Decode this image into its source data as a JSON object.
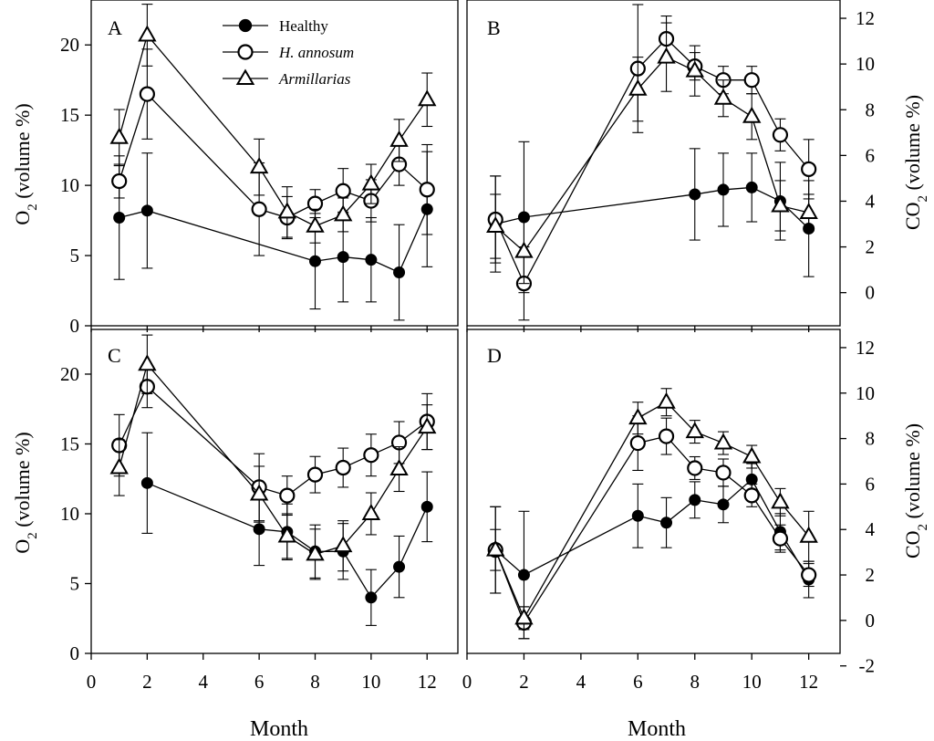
{
  "chart_data": [
    {
      "type": "line",
      "panel": "A",
      "y_axis": "O2",
      "ylim": [
        0,
        23.2
      ],
      "xlim": [
        0,
        13.1
      ],
      "yticks": [
        0,
        5,
        10,
        15,
        20
      ],
      "series": [
        {
          "name": "Healthy",
          "marker": "filled-circle",
          "x": [
            1,
            2,
            8,
            9,
            10,
            11,
            12
          ],
          "values": [
            7.7,
            8.2,
            4.6,
            4.9,
            4.7,
            3.8,
            8.3
          ],
          "err": [
            4.4,
            4.1,
            3.4,
            3.2,
            3.0,
            3.4,
            4.1
          ]
        },
        {
          "name": "H. annosum",
          "marker": "open-circle",
          "x": [
            1,
            2,
            6,
            7,
            8,
            9,
            10,
            11,
            12
          ],
          "values": [
            10.3,
            16.5,
            8.3,
            7.7,
            8.7,
            9.6,
            8.9,
            11.5,
            9.7
          ],
          "err": [
            1.2,
            3.2,
            3.3,
            1.5,
            1.0,
            1.6,
            1.5,
            1.5,
            3.2
          ]
        },
        {
          "name": "Armillarias",
          "marker": "open-triangle",
          "x": [
            1,
            2,
            6,
            7,
            8,
            9,
            10,
            11,
            12
          ],
          "values": [
            13.4,
            20.7,
            11.3,
            8.1,
            7.1,
            7.9,
            10.1,
            13.2,
            16.1
          ],
          "err": [
            2.0,
            2.2,
            2.0,
            1.8,
            1.2,
            1.2,
            1.4,
            1.5,
            1.9
          ]
        }
      ]
    },
    {
      "type": "line",
      "panel": "B",
      "y_axis": "CO2",
      "ylim": [
        -1.45,
        12.8
      ],
      "xlim": [
        0,
        13.1
      ],
      "yticks": [
        0,
        2,
        4,
        6,
        8,
        10,
        12
      ],
      "series": [
        {
          "name": "Healthy",
          "marker": "filled-circle",
          "x": [
            1,
            2,
            8,
            9,
            10,
            11,
            12
          ],
          "values": [
            3.0,
            3.3,
            4.3,
            4.5,
            4.6,
            4.0,
            2.8
          ],
          "err": [
            2.1,
            3.3,
            2.0,
            1.6,
            1.5,
            1.7,
            2.1
          ]
        },
        {
          "name": "H. annosum",
          "marker": "open-circle",
          "x": [
            1,
            2,
            6,
            7,
            8,
            9,
            10,
            11,
            12
          ],
          "values": [
            3.2,
            0.4,
            9.8,
            11.1,
            9.9,
            9.3,
            9.3,
            6.9,
            5.4
          ],
          "err": [
            1.9,
            1.6,
            2.8,
            1.0,
            0.6,
            0.6,
            0.6,
            0.7,
            1.3
          ]
        },
        {
          "name": "Armillarias",
          "marker": "open-triangle",
          "x": [
            1,
            2,
            6,
            7,
            8,
            9,
            10,
            11,
            12
          ],
          "values": [
            2.9,
            1.8,
            8.9,
            10.3,
            9.7,
            8.5,
            7.7,
            3.8,
            3.5
          ],
          "err": [
            1.4,
            1.4,
            1.4,
            1.5,
            1.1,
            0.8,
            1.0,
            1.1,
            0.8
          ]
        }
      ]
    },
    {
      "type": "line",
      "panel": "C",
      "y_axis": "O2",
      "ylim": [
        0,
        23.2
      ],
      "xlim": [
        0,
        13.1
      ],
      "yticks": [
        0,
        5,
        10,
        15,
        20
      ],
      "series": [
        {
          "name": "Healthy",
          "marker": "filled-circle",
          "x": [
            2,
            6,
            7,
            8,
            9,
            10,
            11,
            12
          ],
          "values": [
            12.2,
            8.9,
            8.7,
            7.3,
            7.3,
            4.0,
            6.2,
            10.5
          ],
          "err": [
            3.6,
            2.6,
            2.0,
            1.9,
            2.0,
            2.0,
            2.2,
            2.5
          ]
        },
        {
          "name": "H. annosum",
          "marker": "open-circle",
          "x": [
            1,
            2,
            6,
            7,
            8,
            9,
            10,
            11,
            12
          ],
          "values": [
            14.9,
            19.1,
            11.9,
            11.3,
            12.8,
            13.3,
            14.2,
            15.1,
            16.6
          ],
          "err": [
            2.2,
            1.5,
            2.4,
            1.4,
            1.3,
            1.4,
            1.5,
            1.5,
            2.0
          ]
        },
        {
          "name": "Armillarias",
          "marker": "open-triangle",
          "x": [
            1,
            2,
            6,
            7,
            8,
            9,
            10,
            11,
            12
          ],
          "values": [
            13.3,
            20.7,
            11.4,
            8.4,
            7.1,
            7.7,
            10.0,
            13.2,
            16.2
          ],
          "err": [
            2.0,
            2.1,
            2.0,
            1.6,
            1.8,
            1.8,
            1.5,
            1.6,
            1.6
          ]
        }
      ]
    },
    {
      "type": "line",
      "panel": "D",
      "y_axis": "CO2",
      "ylim": [
        -1.45,
        12.8
      ],
      "xlim": [
        0,
        13.1
      ],
      "yticks": [
        -2,
        0,
        2,
        4,
        6,
        8,
        10,
        12
      ],
      "series": [
        {
          "name": "Healthy",
          "marker": "filled-circle",
          "x": [
            1,
            2,
            6,
            7,
            8,
            9,
            10,
            11,
            12
          ],
          "values": [
            3.1,
            2.0,
            4.6,
            4.3,
            5.3,
            5.1,
            6.2,
            3.9,
            1.8
          ],
          "err": [
            1.9,
            2.8,
            1.4,
            1.1,
            0.8,
            0.8,
            0.7,
            0.8,
            0.8
          ]
        },
        {
          "name": "H. annosum",
          "marker": "open-circle",
          "x": [
            1,
            2,
            6,
            7,
            8,
            9,
            10,
            11,
            12
          ],
          "values": [
            3.1,
            -0.1,
            7.8,
            8.1,
            6.7,
            6.5,
            5.5,
            3.6,
            2.0
          ],
          "err": [
            1.9,
            0.7,
            1.2,
            0.8,
            0.5,
            0.6,
            0.5,
            0.6,
            0.5
          ]
        },
        {
          "name": "Armillarias",
          "marker": "open-triangle",
          "x": [
            1,
            2,
            6,
            7,
            8,
            9,
            10,
            11,
            12
          ],
          "values": [
            3.1,
            0.1,
            8.9,
            9.6,
            8.3,
            7.8,
            7.2,
            5.2,
            3.7
          ],
          "err": [
            0.9,
            0.5,
            0.7,
            0.6,
            0.5,
            0.5,
            0.5,
            0.6,
            1.1
          ]
        }
      ]
    }
  ],
  "labels": {
    "panel_letters": [
      "A",
      "B",
      "C",
      "D"
    ],
    "y_left_main": "O",
    "y_left_sub": "2",
    "y_left_rest": " (volume %)",
    "y_right_main": "CO",
    "y_right_sub": "2",
    "y_right_rest": " (volume %)",
    "xlabel": "Month",
    "xticks": [
      0,
      2,
      4,
      6,
      8,
      10,
      12
    ]
  },
  "legend": [
    {
      "label": "Healthy",
      "marker": "filled-circle",
      "italic": false
    },
    {
      "label": "H. annosum",
      "marker": "open-circle",
      "italic": true
    },
    {
      "label": "Armillarias",
      "marker": "open-triangle",
      "italic": false
    }
  ]
}
